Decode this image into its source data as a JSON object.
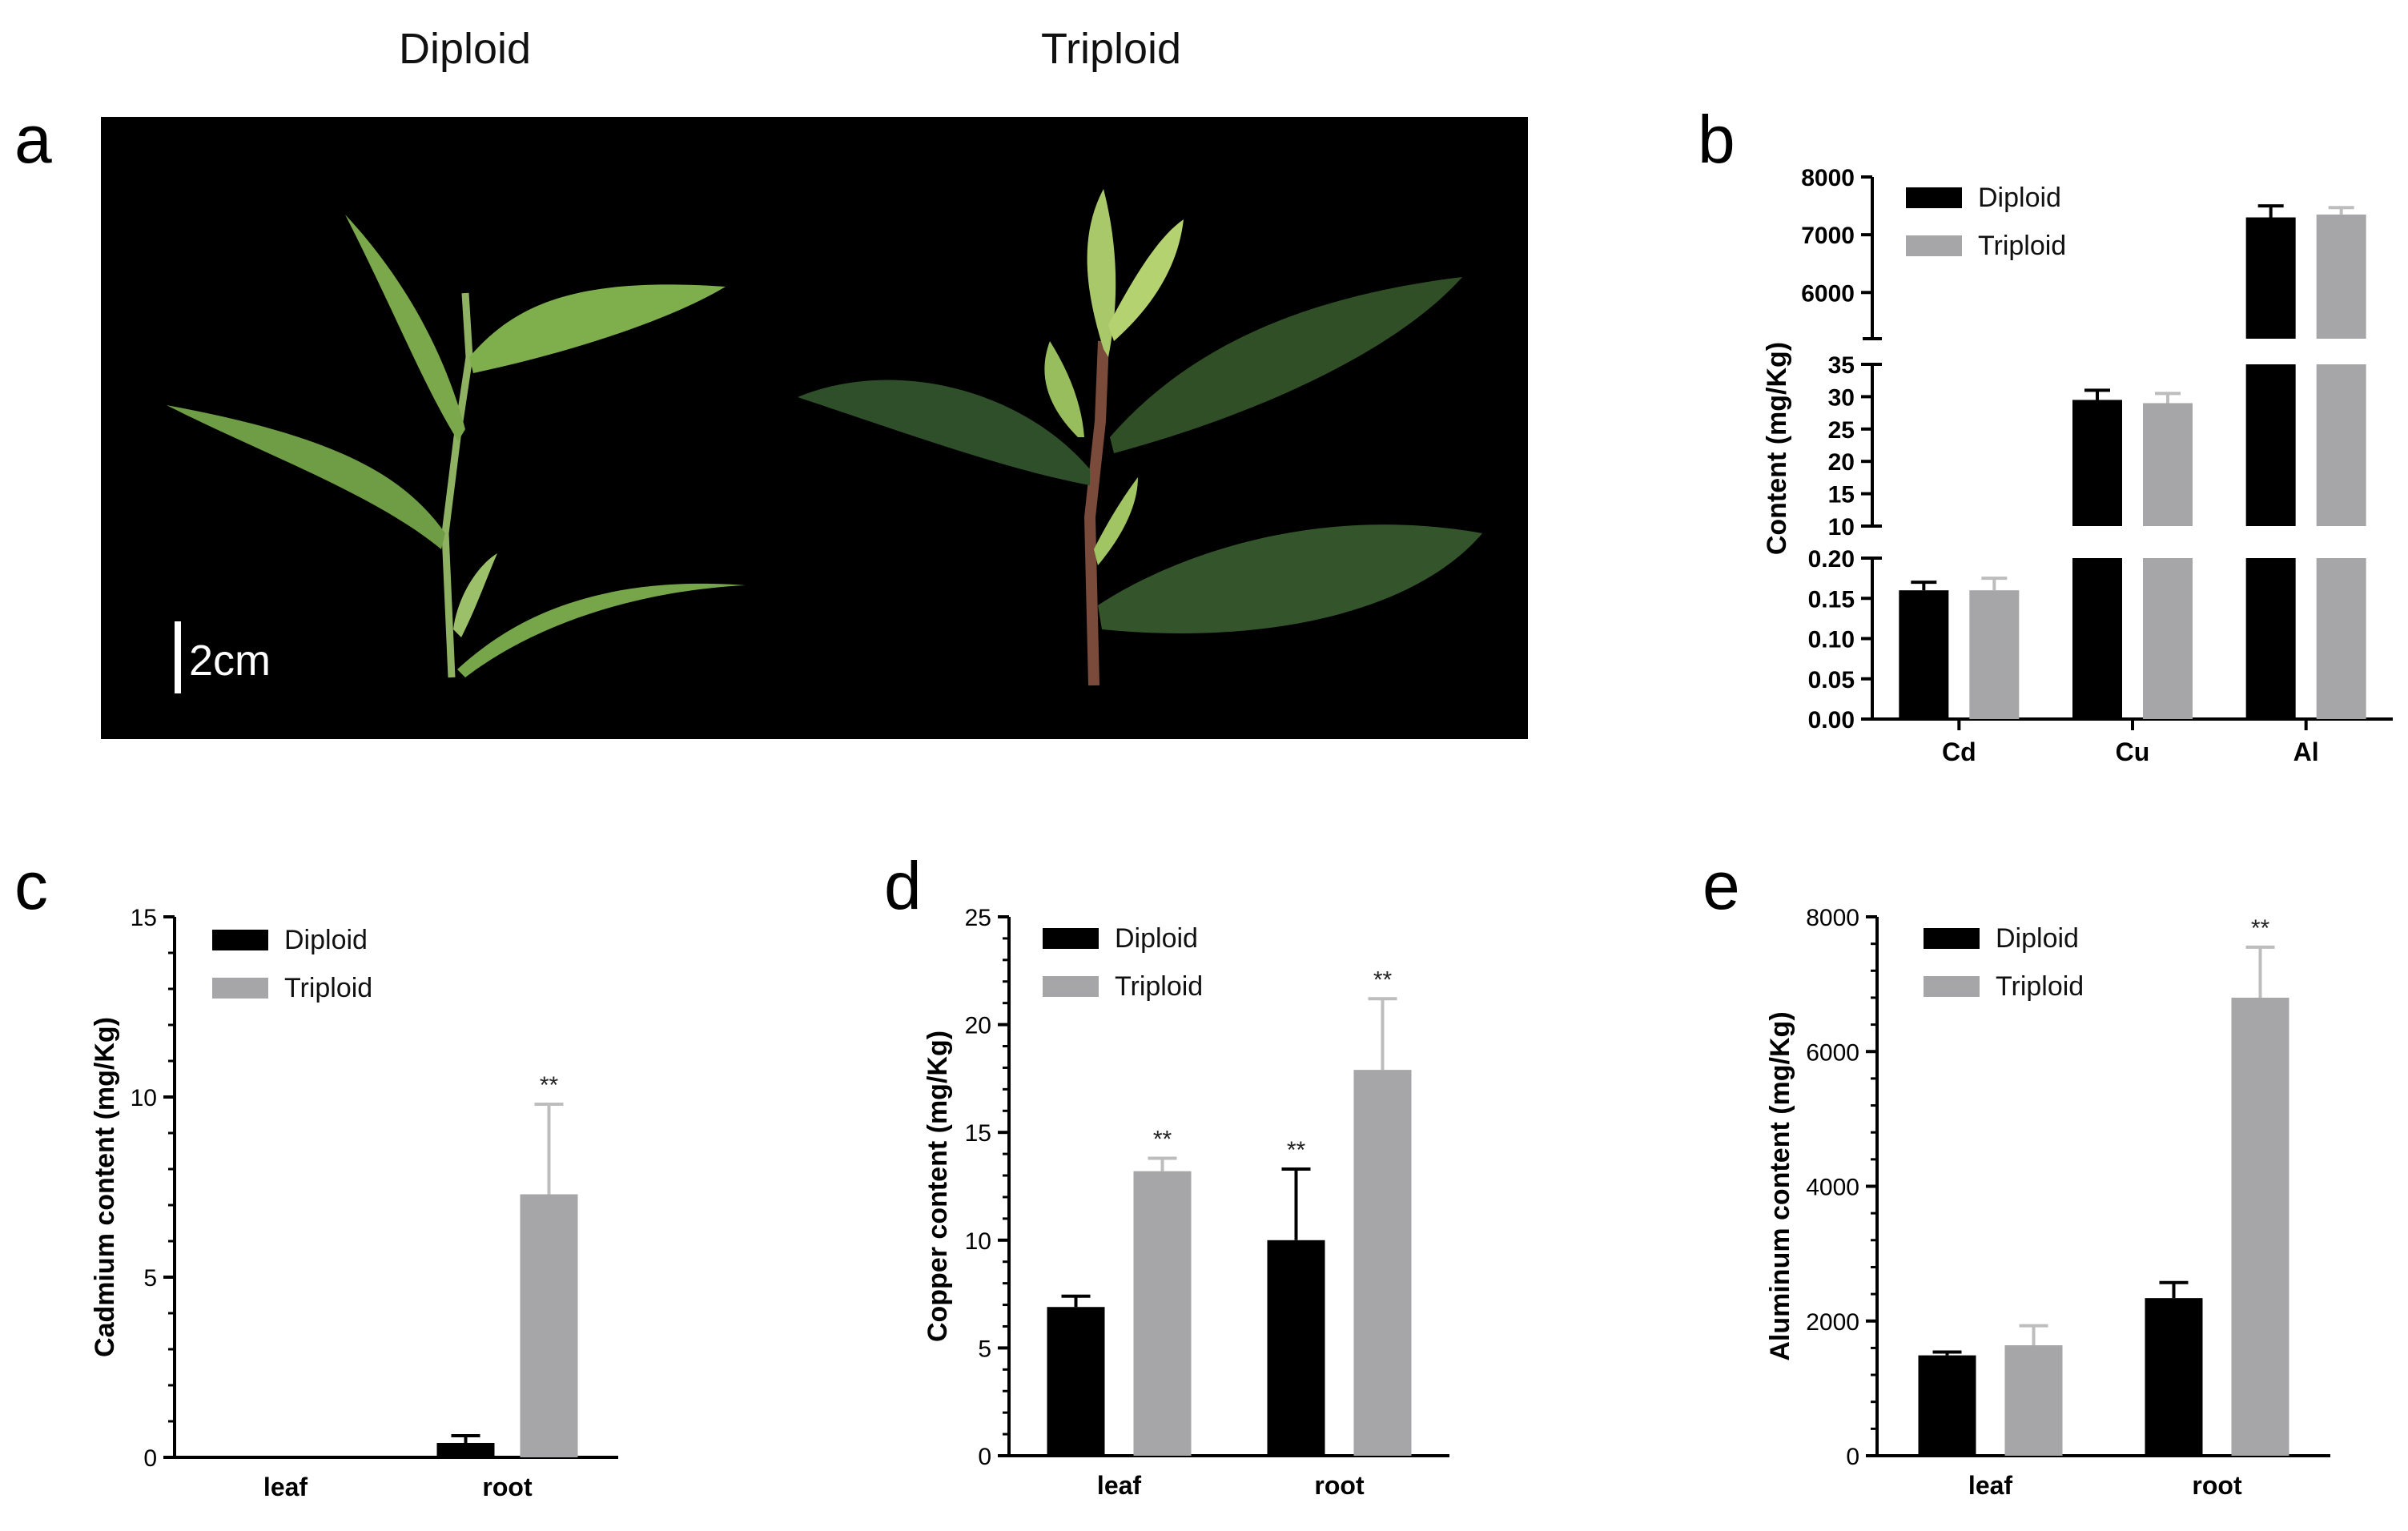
{
  "header": {
    "left": "Diploid",
    "right": "Triploid"
  },
  "panels": {
    "a": "a",
    "b": "b",
    "c": "c",
    "d": "d",
    "e": "e"
  },
  "photo": {
    "scale_bar": "2cm"
  },
  "colors": {
    "diploid": "#000000",
    "triploid": "#a6a6a8",
    "triploid_error": "#bdbdbd"
  },
  "chart_data": [
    {
      "panel": "b",
      "type": "bar",
      "ylabel": "Content (mg/Kg)",
      "categories": [
        "Cd",
        "Cu",
        "Al"
      ],
      "series": [
        {
          "name": "Diploid",
          "values": [
            0.16,
            29.5,
            7300
          ],
          "errors": [
            0.01,
            1.5,
            200
          ]
        },
        {
          "name": "Triploid",
          "values": [
            0.16,
            29,
            7350
          ],
          "errors": [
            0.015,
            1.5,
            120
          ]
        }
      ],
      "segments": [
        {
          "ylim": [
            0,
            0.2
          ],
          "ticks": [
            "0.00",
            "0.05",
            "0.10",
            "0.15",
            "0.20"
          ]
        },
        {
          "ylim": [
            10,
            35
          ],
          "ticks": [
            "10",
            "15",
            "20",
            "25",
            "30",
            "35"
          ]
        },
        {
          "ylim": [
            5200,
            8000
          ],
          "ticks": [
            "6000",
            "7000",
            "8000"
          ]
        }
      ],
      "legend": "top-left"
    },
    {
      "panel": "c",
      "type": "bar",
      "ylabel": "Cadmium content (mg/Kg)",
      "categories": [
        "leaf",
        "root"
      ],
      "series": [
        {
          "name": "Diploid",
          "values": [
            0,
            0.4
          ],
          "errors": [
            0,
            0.2
          ],
          "sig": [
            "",
            ""
          ]
        },
        {
          "name": "Triploid",
          "values": [
            0,
            7.3
          ],
          "errors": [
            0,
            2.5
          ],
          "sig": [
            "",
            "**"
          ]
        }
      ],
      "ylim": [
        0,
        15
      ],
      "ticks": [
        "0",
        "5",
        "10",
        "15"
      ],
      "legend": "top-left"
    },
    {
      "panel": "d",
      "type": "bar",
      "ylabel": "Copper  content (mg/Kg)",
      "categories": [
        "leaf",
        "root"
      ],
      "series": [
        {
          "name": "Diploid",
          "values": [
            6.9,
            10
          ],
          "errors": [
            0.5,
            3.3
          ],
          "sig": [
            "",
            "**"
          ]
        },
        {
          "name": "Triploid",
          "values": [
            13.2,
            17.9
          ],
          "errors": [
            0.6,
            3.3
          ],
          "sig": [
            "**",
            "**"
          ]
        }
      ],
      "ylim": [
        0,
        25
      ],
      "ticks": [
        "0",
        "5",
        "10",
        "15",
        "20",
        "25"
      ],
      "legend": "top-left"
    },
    {
      "panel": "e",
      "type": "bar",
      "ylabel": "Aluminum  content (mg/Kg)",
      "categories": [
        "leaf",
        "root"
      ],
      "series": [
        {
          "name": "Diploid",
          "values": [
            1490,
            2340
          ],
          "errors": [
            50,
            230
          ],
          "sig": [
            "",
            ""
          ]
        },
        {
          "name": "Triploid",
          "values": [
            1640,
            6800
          ],
          "errors": [
            290,
            750
          ],
          "sig": [
            "",
            "**"
          ]
        }
      ],
      "ylim": [
        0,
        8000
      ],
      "ticks": [
        "0",
        "2000",
        "4000",
        "6000",
        "8000"
      ],
      "legend": "top-left"
    }
  ]
}
